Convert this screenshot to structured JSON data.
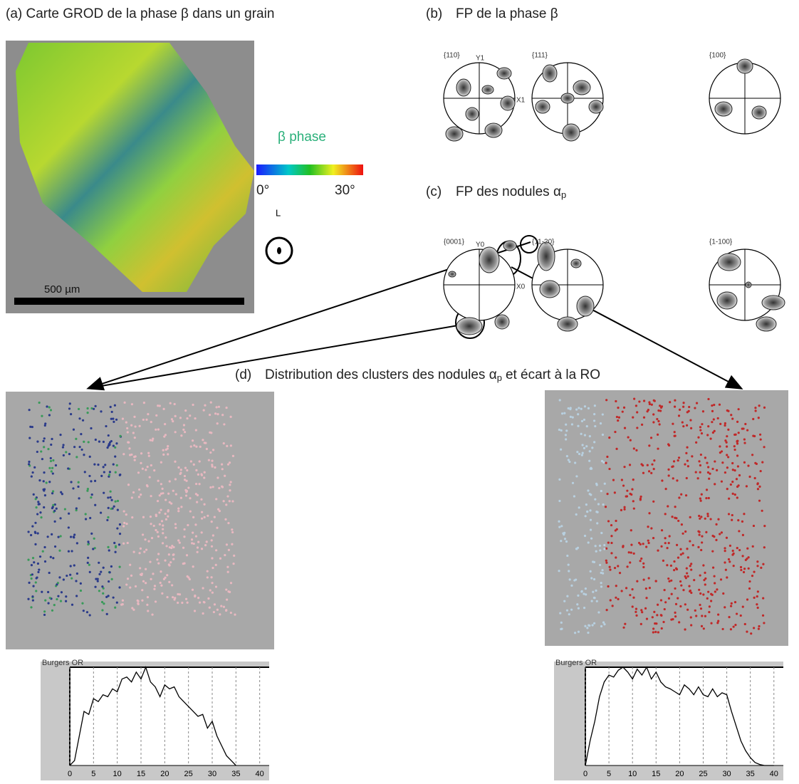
{
  "panels": {
    "a": {
      "title": "(a) Carte GROD de la phase β  dans un grain",
      "phase_label": "β phase",
      "scale_min": "0°",
      "scale_max": "30°",
      "direction": "L",
      "scale_bar": "500 µm"
    },
    "b": {
      "label": "(b)",
      "title": "FP de la phase β",
      "pole_figures": [
        {
          "label": "{110}",
          "y_axis": "Y1",
          "x_axis": "X1"
        },
        {
          "label": "{111}"
        },
        {
          "label": "{100}"
        }
      ]
    },
    "c": {
      "label": "(c)",
      "title": "FP des nodules α",
      "subscript": "p",
      "pole_figures": [
        {
          "label": "{0001}",
          "y_axis": "Y0",
          "x_axis": "X0"
        },
        {
          "label": "{11-20}"
        },
        {
          "label": "{1-100}"
        }
      ]
    },
    "d": {
      "label": "(d)",
      "title": "Distribution des clusters des nodules α",
      "subscript": "p",
      "title_end": "et écart à la RO"
    }
  },
  "chart_data": [
    {
      "type": "line",
      "title": "Burgers OR",
      "color": "#000000",
      "xlim": [
        0,
        42
      ],
      "ylim": [
        0,
        100
      ],
      "xticks": [
        0,
        5,
        10,
        15,
        20,
        25,
        30,
        35,
        40
      ],
      "grid": true,
      "x": [
        0,
        1,
        2,
        3,
        4,
        5,
        6,
        7,
        8,
        9,
        10,
        11,
        12,
        13,
        14,
        15,
        16,
        17,
        18,
        19,
        20,
        21,
        22,
        23,
        24,
        25,
        26,
        27,
        28,
        29,
        30,
        31,
        32,
        33,
        34,
        35
      ],
      "values": [
        0,
        5,
        30,
        55,
        52,
        68,
        65,
        72,
        70,
        78,
        75,
        88,
        90,
        85,
        95,
        88,
        100,
        85,
        80,
        70,
        82,
        78,
        80,
        70,
        65,
        60,
        55,
        50,
        52,
        38,
        45,
        30,
        20,
        10,
        5,
        0
      ]
    },
    {
      "type": "line",
      "title": "Burgers OR",
      "color": "#000000",
      "xlim": [
        0,
        42
      ],
      "ylim": [
        0,
        100
      ],
      "xticks": [
        0,
        5,
        10,
        15,
        20,
        25,
        30,
        35,
        40
      ],
      "grid": true,
      "x": [
        0,
        1,
        2,
        3,
        4,
        5,
        6,
        7,
        8,
        9,
        10,
        11,
        12,
        13,
        14,
        15,
        16,
        17,
        18,
        19,
        20,
        21,
        22,
        23,
        24,
        25,
        26,
        27,
        28,
        29,
        30,
        31,
        32,
        33,
        34,
        35,
        36,
        37,
        38,
        39,
        40
      ],
      "values": [
        0,
        25,
        45,
        70,
        85,
        92,
        90,
        97,
        100,
        95,
        88,
        98,
        92,
        100,
        88,
        95,
        85,
        80,
        78,
        75,
        72,
        82,
        78,
        72,
        80,
        72,
        70,
        78,
        70,
        74,
        72,
        55,
        40,
        25,
        15,
        8,
        3,
        1,
        0,
        0,
        0
      ]
    }
  ]
}
